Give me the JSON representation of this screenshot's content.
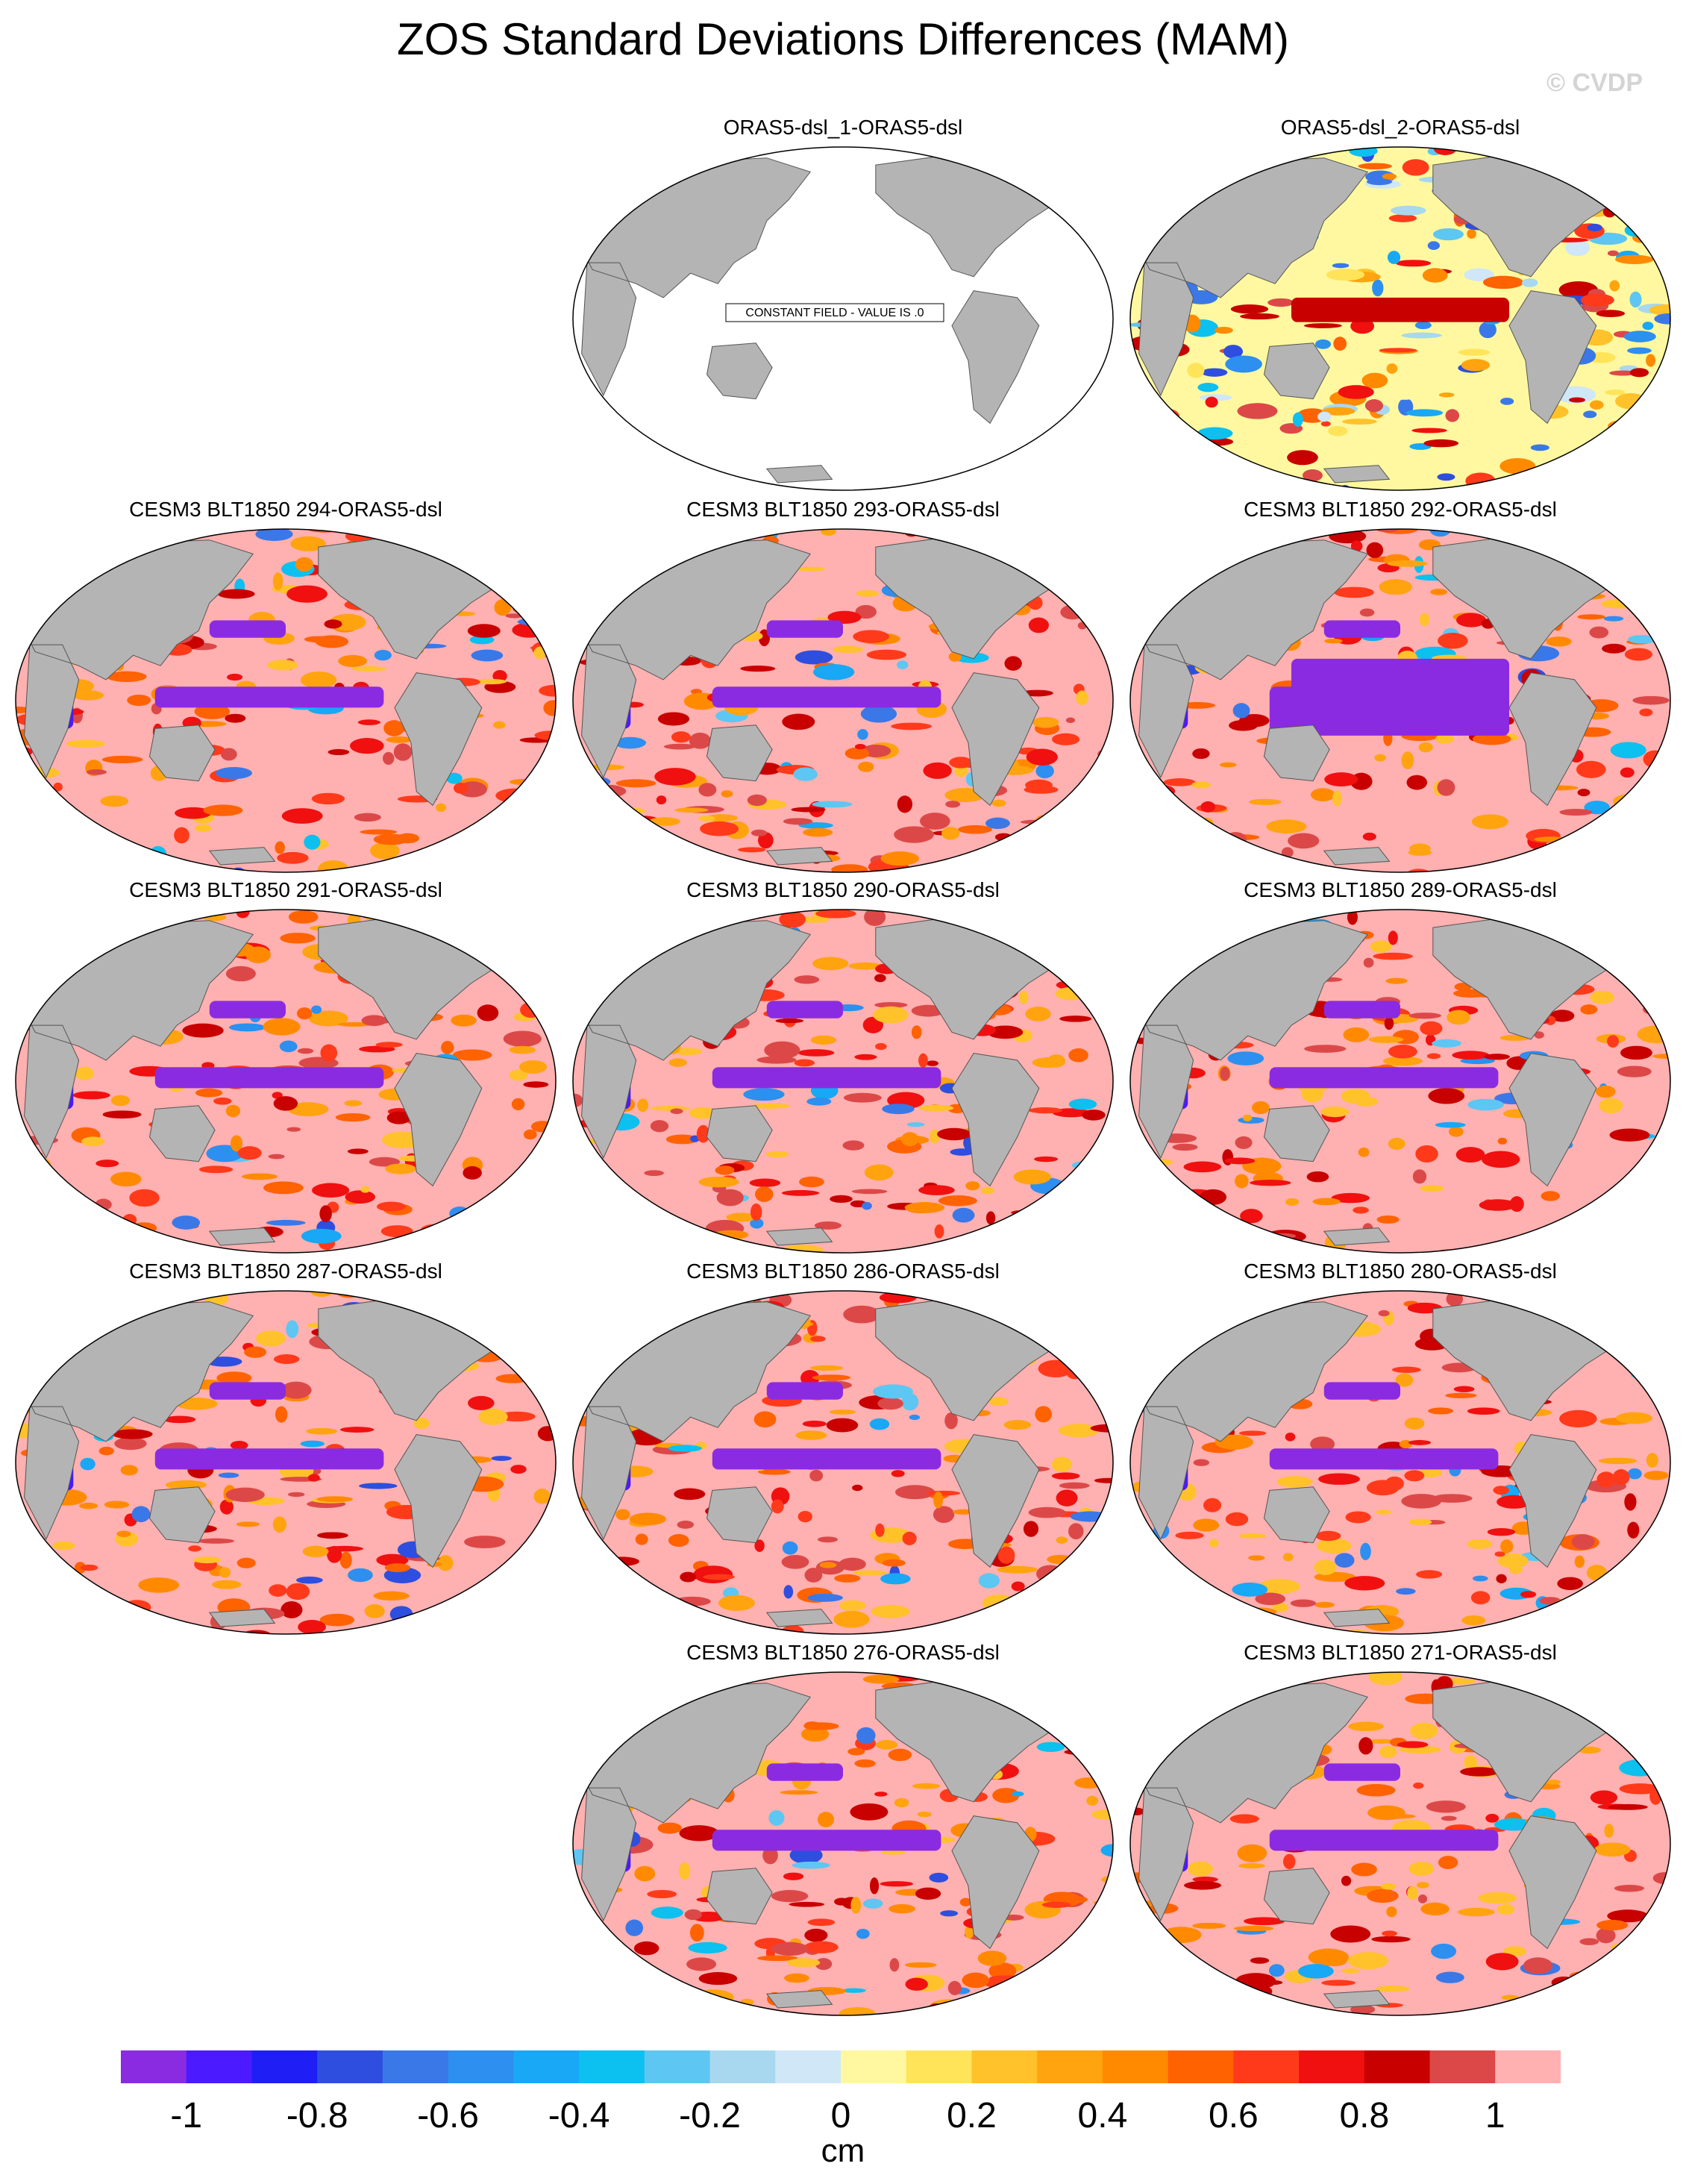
{
  "title": "ZOS Standard Deviations Differences (MAM)",
  "watermark": "© CVDP",
  "constant_field_label": "CONSTANT FIELD - VALUE IS .0",
  "units": "cm",
  "panels": [
    {
      "label": "ORAS5-dsl_1-ORAS5-dsl",
      "row": 0,
      "col": 1,
      "kind": "constant"
    },
    {
      "label": "ORAS5-dsl_2-ORAS5-dsl",
      "row": 0,
      "col": 2,
      "kind": "mixed"
    },
    {
      "label": "CESM3 BLT1850 294-ORAS5-dsl",
      "row": 1,
      "col": 0,
      "kind": "model"
    },
    {
      "label": "CESM3 BLT1850 293-ORAS5-dsl",
      "row": 1,
      "col": 1,
      "kind": "model"
    },
    {
      "label": "CESM3 BLT1850 292-ORAS5-dsl",
      "row": 1,
      "col": 2,
      "kind": "strong"
    },
    {
      "label": "CESM3 BLT1850 291-ORAS5-dsl",
      "row": 2,
      "col": 0,
      "kind": "model"
    },
    {
      "label": "CESM3 BLT1850 290-ORAS5-dsl",
      "row": 2,
      "col": 1,
      "kind": "model"
    },
    {
      "label": "CESM3 BLT1850 289-ORAS5-dsl",
      "row": 2,
      "col": 2,
      "kind": "model"
    },
    {
      "label": "CESM3 BLT1850 287-ORAS5-dsl",
      "row": 3,
      "col": 0,
      "kind": "model"
    },
    {
      "label": "CESM3 BLT1850 286-ORAS5-dsl",
      "row": 3,
      "col": 1,
      "kind": "model"
    },
    {
      "label": "CESM3 BLT1850 280-ORAS5-dsl",
      "row": 3,
      "col": 2,
      "kind": "model"
    },
    {
      "label": "CESM3 BLT1850 276-ORAS5-dsl",
      "row": 4,
      "col": 1,
      "kind": "model"
    },
    {
      "label": "CESM3 BLT1850 271-ORAS5-dsl",
      "row": 4,
      "col": 2,
      "kind": "model"
    }
  ],
  "colorbar": {
    "colors": [
      "#8a2be2",
      "#4b1aff",
      "#1f1ff5",
      "#2e4ee0",
      "#3a78e8",
      "#2d8ff0",
      "#18a8f5",
      "#0cc0f0",
      "#5ec6f2",
      "#a8d8f0",
      "#cfe7f7",
      "#fff8a0",
      "#ffe45a",
      "#ffc22a",
      "#ffa30f",
      "#ff8a00",
      "#ff6200",
      "#ff3a1a",
      "#f01010",
      "#c80000",
      "#dc4848",
      "#ffb0b0"
    ],
    "tick_labels": [
      "-1",
      "-0.8",
      "-0.6",
      "-0.4",
      "-0.2",
      "0",
      "0.2",
      "0.4",
      "0.6",
      "0.8",
      "1"
    ],
    "tick_values": [
      -1,
      -0.8,
      -0.6,
      -0.4,
      -0.2,
      0,
      0.2,
      0.4,
      0.6,
      0.8,
      1
    ],
    "range": [
      -1.1,
      1.1
    ]
  },
  "colors": {
    "land": "#b4b4b4",
    "ocean_neutral": "#ffffff",
    "saturated_positive": "#ffb0b0"
  }
}
